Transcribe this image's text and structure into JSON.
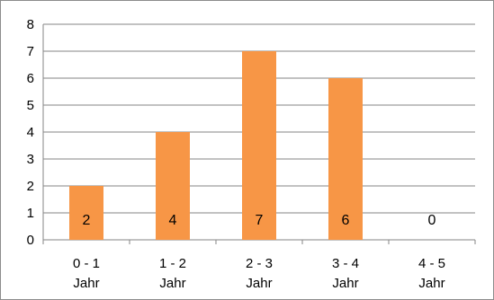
{
  "chart_data": {
    "type": "bar",
    "categories": [
      [
        "0 - 1",
        "Jahr"
      ],
      [
        "1 - 2",
        "Jahr"
      ],
      [
        "2 - 3",
        "Jahr"
      ],
      [
        "3 - 4",
        "Jahr"
      ],
      [
        "4 - 5",
        "Jahr"
      ]
    ],
    "values": [
      2,
      4,
      7,
      6,
      0
    ],
    "data_labels": [
      "2",
      "4",
      "7",
      "6",
      "0"
    ],
    "ylim": [
      0,
      8
    ],
    "yticks": [
      "0",
      "1",
      "2",
      "3",
      "4",
      "5",
      "6",
      "7",
      "8"
    ],
    "title": "",
    "xlabel": "",
    "ylabel": "",
    "grid": true,
    "legend": "none",
    "colors": {
      "bar": "#F79646",
      "grid": "#868686",
      "axis": "#868686"
    }
  }
}
